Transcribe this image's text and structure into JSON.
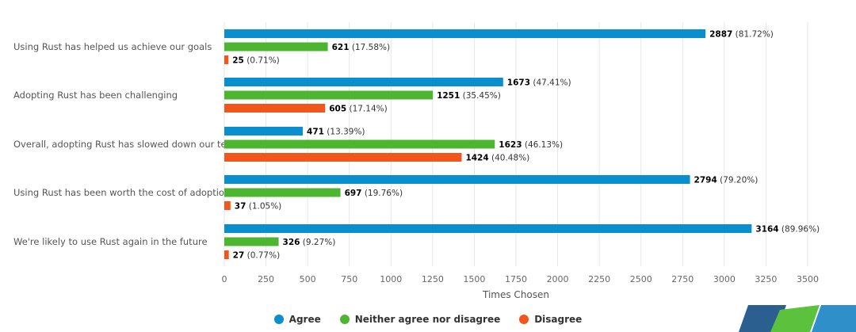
{
  "chart_data": {
    "type": "bar",
    "orientation": "horizontal",
    "categories": [
      "Using Rust has helped us achieve our goals",
      "Adopting Rust has been challenging",
      "Overall, adopting Rust has slowed down our team",
      "Using Rust has been worth the cost of adoption",
      "We're likely to use Rust again in the future"
    ],
    "series": [
      {
        "name": "Agree",
        "color": "#0a8fce",
        "values": [
          2887,
          1673,
          471,
          2794,
          3164
        ],
        "percents": [
          "81.72%",
          "47.41%",
          "13.39%",
          "79.20%",
          "89.96%"
        ]
      },
      {
        "name": "Neither agree nor disagree",
        "color": "#4db631",
        "values": [
          621,
          1251,
          1623,
          697,
          326
        ],
        "percents": [
          "17.58%",
          "35.45%",
          "46.13%",
          "19.76%",
          "9.27%"
        ]
      },
      {
        "name": "Disagree",
        "color": "#f2561d",
        "values": [
          25,
          605,
          1424,
          37,
          27
        ],
        "percents": [
          "0.71%",
          "17.14%",
          "40.48%",
          "1.05%",
          "0.77%"
        ]
      }
    ],
    "xlabel": "Times Chosen",
    "xlim": [
      0,
      3500
    ],
    "xticks": [
      0,
      250,
      500,
      750,
      1000,
      1250,
      1500,
      1750,
      2000,
      2250,
      2500,
      2750,
      3000,
      3250,
      3500
    ],
    "grid": true,
    "legend_position": "bottom-center"
  }
}
